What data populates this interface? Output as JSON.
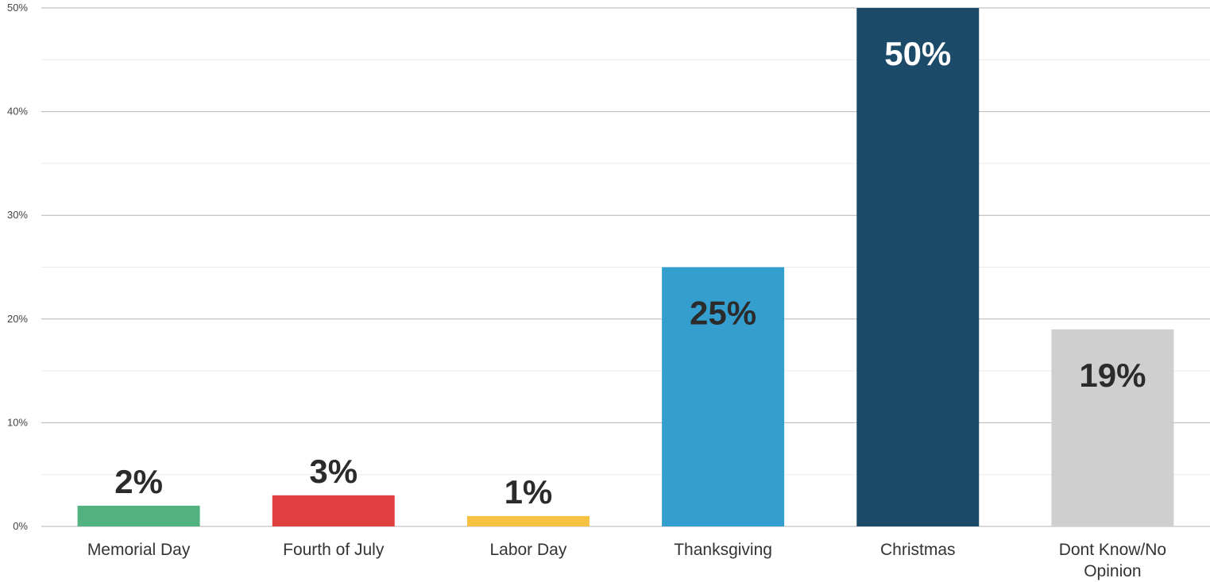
{
  "chart_data": {
    "type": "bar",
    "categories": [
      "Memorial Day",
      "Fourth of July",
      "Labor Day",
      "Thanksgiving",
      "Christmas",
      "Dont Know/No Opinion"
    ],
    "values": [
      2,
      3,
      1,
      25,
      50,
      19
    ],
    "value_labels": [
      "2%",
      "3%",
      "1%",
      "25%",
      "50%",
      "19%"
    ],
    "colors": [
      "#52b27f",
      "#e04040",
      "#f5c242",
      "#349fcf",
      "#1c4a69",
      "#cfcfcf"
    ],
    "label_colors": [
      "#2b2b2b",
      "#2b2b2b",
      "#2b2b2b",
      "#2b2b2b",
      "#ffffff",
      "#2b2b2b"
    ],
    "ylim": [
      0,
      50
    ],
    "yticks": [
      0,
      10,
      20,
      30,
      40,
      50
    ],
    "ytick_labels": [
      "0%",
      "10%",
      "20%",
      "30%",
      "40%",
      "50%"
    ],
    "grid": true,
    "minor_grid": true,
    "legend": "none"
  }
}
